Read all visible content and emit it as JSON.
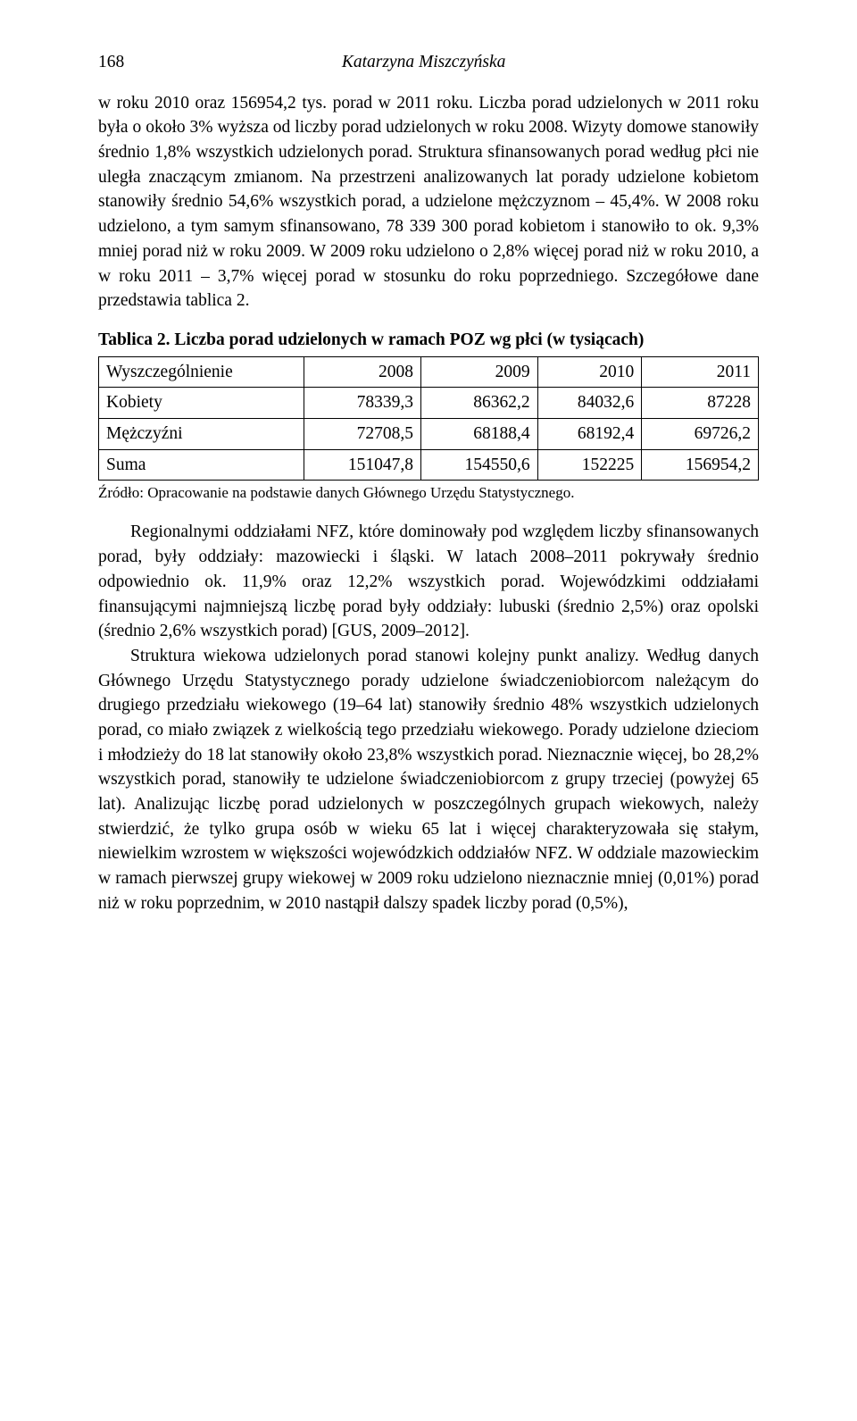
{
  "page_number": "168",
  "author": "Katarzyna Miszczyńska",
  "paragraph1": "w roku 2010 oraz 156954,2 tys. porad w 2011 roku. Liczba porad udzielonych w 2011 roku była o około 3% wyższa od liczby porad udzielonych w roku 2008. Wizyty domowe stanowiły średnio 1,8% wszystkich udzielonych porad. Struktura sfinansowanych porad według płci nie uległa znaczącym zmianom. Na przestrzeni analizowanych lat porady udzielone kobietom stanowiły średnio 54,6% wszystkich porad, a udzielone mężczyznom – 45,4%. W 2008 roku udzielono, a tym samym sfinansowano, 78 339 300 porad kobietom i stanowiło to ok. 9,3% mniej porad niż w roku 2009. W 2009 roku udzielono o 2,8% więcej porad niż w roku 2010, a w roku 2011 – 3,7% więcej porad w stosunku do roku poprzedniego. Szczegółowe dane przedstawia tablica 2.",
  "table": {
    "title": "Tablica 2. Liczba porad udzielonych w ramach POZ wg płci (w tysiącach)",
    "columns": [
      "Wyszczególnienie",
      "2008",
      "2009",
      "2010",
      "2011"
    ],
    "rows": [
      [
        "Kobiety",
        "78339,3",
        "86362,2",
        "84032,6",
        "87228"
      ],
      [
        "Mężczyźni",
        "72708,5",
        "68188,4",
        "68192,4",
        "69726,2"
      ],
      [
        "Suma",
        "151047,8",
        "154550,6",
        "152225",
        "156954,2"
      ]
    ],
    "source": "Źródło: Opracowanie na podstawie danych Głównego Urzędu Statystycznego."
  },
  "paragraph2": "Regionalnymi oddziałami NFZ, które dominowały pod względem liczby sfinansowanych porad, były oddziały: mazowiecki i śląski. W latach 2008–2011 pokrywały średnio odpowiednio ok. 11,9% oraz 12,2% wszystkich porad. Wojewódzkimi oddziałami finansującymi najmniejszą liczbę porad były oddziały: lubuski (średnio 2,5%) oraz opolski (średnio 2,6% wszystkich porad) [GUS, 2009–2012].",
  "paragraph3": "Struktura wiekowa udzielonych porad stanowi kolejny punkt analizy. Według danych Głównego Urzędu Statystycznego porady udzielone świadczeniobiorcom należącym do drugiego przedziału wiekowego (19–64 lat) stanowiły średnio 48% wszystkich udzielonych porad, co miało związek z wielkością tego przedziału wiekowego. Porady udzielone dzieciom i młodzieży do 18 lat stanowiły około 23,8% wszystkich porad. Nieznacznie więcej, bo 28,2% wszystkich porad, stanowiły te udzielone świadczeniobiorcom z grupy trzeciej (powyżej 65 lat). Analizując liczbę porad udzielonych w poszczególnych grupach wiekowych, należy stwierdzić, że tylko grupa osób w wieku 65 lat i więcej charakteryzowała się stałym, niewielkim wzrostem w większości wojewódzkich oddziałów NFZ. W oddziale mazowieckim w ramach pierwszej grupy wiekowej w 2009 roku udzielono nieznacznie mniej (0,01%) porad niż w roku poprzednim, w 2010 nastąpił dalszy spadek liczby porad (0,5%),"
}
